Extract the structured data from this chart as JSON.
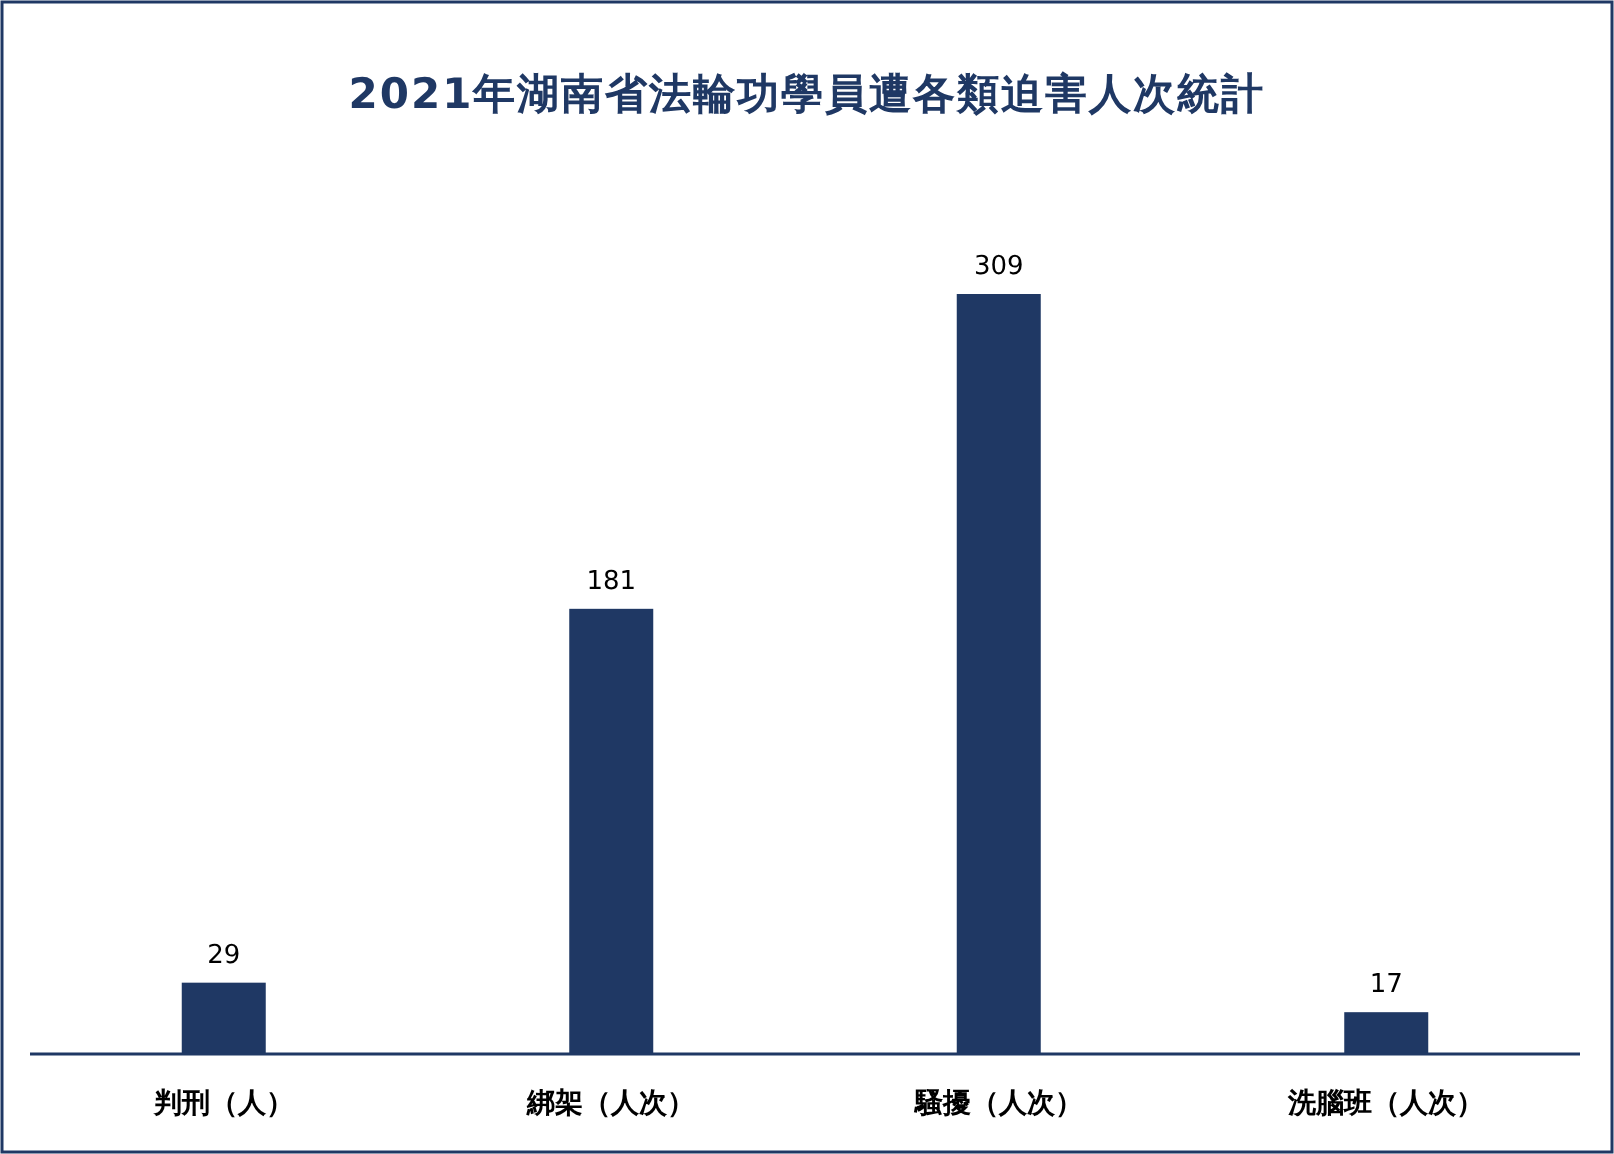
{
  "chart_data": {
    "type": "bar",
    "title": "2021年湖南省法輪功學員遭各類迫害人次統計",
    "categories": [
      "判刑（人）",
      "綁架（人次）",
      "騷擾（人次）",
      "洗腦班（人次）"
    ],
    "values": [
      29,
      181,
      309,
      17
    ],
    "color": "#1f3864",
    "data_labels": true
  }
}
